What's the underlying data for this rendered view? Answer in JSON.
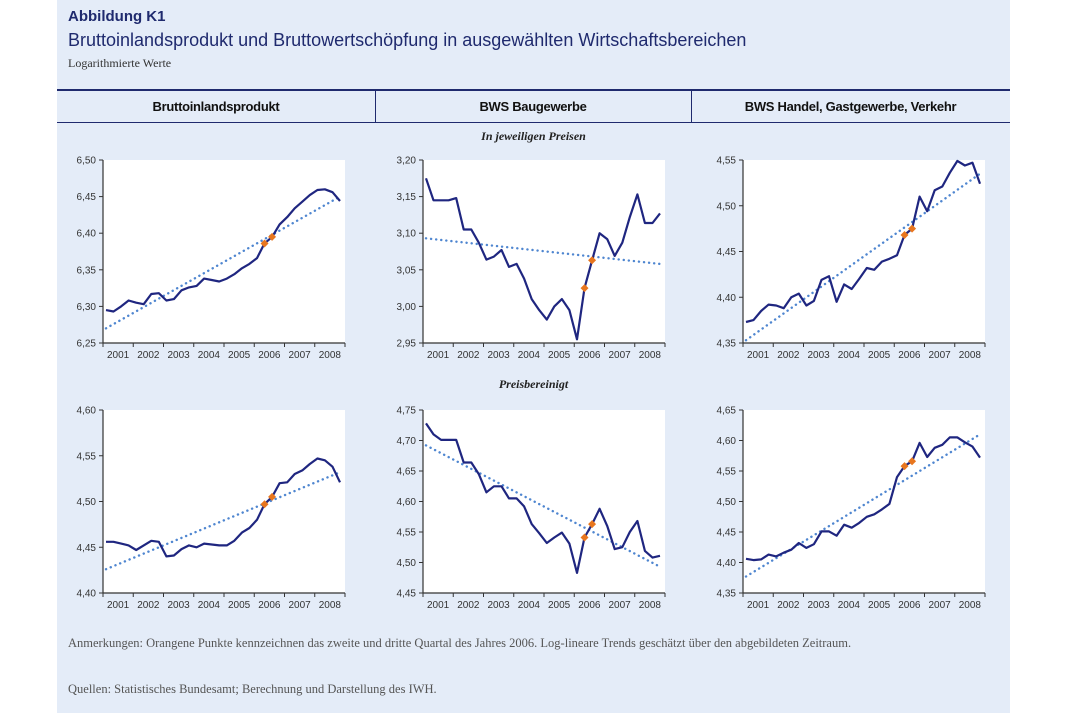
{
  "header": {
    "label": "Abbildung K1",
    "title": "Bruttoinlandsprodukt und Bruttowertschöpfung in ausgewählten Wirtschaftsbereichen",
    "subtitle": "Logarithmierte Werte"
  },
  "columns": [
    "Bruttoinlandsprodukt",
    "BWS Baugewerbe",
    "BWS Handel, Gastgewerbe, Verkehr"
  ],
  "sections": [
    "In jeweiligen Preisen",
    "Preisbereinigt"
  ],
  "notes": {
    "remarks": "Anmerkungen: Orangene Punkte kennzeichnen das zweite und dritte Quartal des Jahres 2006. Log-lineare Trends geschätzt über den abgebildeten Zeitraum.",
    "sources": "Quellen: Statistisches Bundesamt; Berechnung und Darstellung des IWH."
  },
  "colors": {
    "series": "#1f2680",
    "trend": "#4f86d0",
    "highlight": "#e8761e",
    "background": "#e4ecf8"
  },
  "chart_data": [
    {
      "type": "line",
      "section": "In jeweiligen Preisen",
      "column": "Bruttoinlandsprodukt",
      "x_ticks": [
        "2001",
        "2002",
        "2003",
        "2004",
        "2005",
        "2006",
        "2007",
        "2008"
      ],
      "frequency": "quarterly",
      "ylim": [
        6.25,
        6.5
      ],
      "y_ticks": [
        "6,25",
        "6,30",
        "6,35",
        "6,40",
        "6,45",
        "6,50"
      ],
      "values": [
        6.295,
        6.293,
        6.3,
        6.308,
        6.305,
        6.303,
        6.317,
        6.318,
        6.308,
        6.31,
        6.322,
        6.326,
        6.328,
        6.338,
        6.336,
        6.334,
        6.338,
        6.344,
        6.352,
        6.358,
        6.366,
        6.386,
        6.395,
        6.412,
        6.422,
        6.434,
        6.443,
        6.452,
        6.459,
        6.46,
        6.456,
        6.444
      ],
      "trend": [
        6.27,
        6.45
      ],
      "highlight_quarters": [
        "2006Q2",
        "2006Q3"
      ]
    },
    {
      "type": "line",
      "section": "In jeweiligen Preisen",
      "column": "BWS Baugewerbe",
      "x_ticks": [
        "2001",
        "2002",
        "2003",
        "2004",
        "2005",
        "2006",
        "2007",
        "2008"
      ],
      "frequency": "quarterly",
      "ylim": [
        2.95,
        3.2
      ],
      "y_ticks": [
        "2,95",
        "3,00",
        "3,05",
        "3,10",
        "3,15",
        "3,20"
      ],
      "values": [
        3.175,
        3.145,
        3.145,
        3.145,
        3.148,
        3.105,
        3.105,
        3.087,
        3.064,
        3.068,
        3.077,
        3.054,
        3.058,
        3.038,
        3.01,
        2.995,
        2.982,
        3.0,
        3.01,
        2.995,
        2.955,
        3.025,
        3.063,
        3.1,
        3.092,
        3.069,
        3.087,
        3.122,
        3.153,
        3.114,
        3.114,
        3.127
      ],
      "trend": [
        3.093,
        3.058
      ],
      "highlight_quarters": [
        "2006Q2",
        "2006Q3"
      ]
    },
    {
      "type": "line",
      "section": "In jeweiligen Preisen",
      "column": "BWS Handel, Gastgewerbe, Verkehr",
      "x_ticks": [
        "2001",
        "2002",
        "2003",
        "2004",
        "2005",
        "2006",
        "2007",
        "2008"
      ],
      "frequency": "quarterly",
      "ylim": [
        4.35,
        4.55
      ],
      "y_ticks": [
        "4,35",
        "4,40",
        "4,45",
        "4,50",
        "4,55"
      ],
      "values": [
        4.373,
        4.375,
        4.385,
        4.392,
        4.391,
        4.388,
        4.4,
        4.404,
        4.391,
        4.396,
        4.419,
        4.423,
        4.395,
        4.414,
        4.409,
        4.42,
        4.432,
        4.43,
        4.439,
        4.442,
        4.446,
        4.468,
        4.475,
        4.51,
        4.494,
        4.517,
        4.521,
        4.536,
        4.549,
        4.544,
        4.547,
        4.524
      ],
      "trend": [
        4.353,
        4.535
      ],
      "highlight_quarters": [
        "2006Q2",
        "2006Q3"
      ]
    },
    {
      "type": "line",
      "section": "Preisbereinigt",
      "column": "Bruttoinlandsprodukt",
      "x_ticks": [
        "2001",
        "2002",
        "2003",
        "2004",
        "2005",
        "2006",
        "2007",
        "2008"
      ],
      "frequency": "quarterly",
      "ylim": [
        4.4,
        4.6
      ],
      "y_ticks": [
        "4,40",
        "4,45",
        "4,50",
        "4,55",
        "4,60"
      ],
      "values": [
        4.456,
        4.456,
        4.454,
        4.452,
        4.447,
        4.452,
        4.457,
        4.456,
        4.44,
        4.441,
        4.448,
        4.452,
        4.45,
        4.454,
        4.453,
        4.452,
        4.452,
        4.457,
        4.466,
        4.471,
        4.48,
        4.497,
        4.505,
        4.52,
        4.521,
        4.53,
        4.534,
        4.541,
        4.547,
        4.545,
        4.538,
        4.521
      ],
      "trend": [
        4.426,
        4.532
      ],
      "highlight_quarters": [
        "2006Q2",
        "2006Q3"
      ]
    },
    {
      "type": "line",
      "section": "Preisbereinigt",
      "column": "BWS Baugewerbe",
      "x_ticks": [
        "2001",
        "2002",
        "2003",
        "2004",
        "2005",
        "2006",
        "2007",
        "2008"
      ],
      "frequency": "quarterly",
      "ylim": [
        4.45,
        4.75
      ],
      "y_ticks": [
        "4,45",
        "4,50",
        "4,55",
        "4,60",
        "4,65",
        "4,70",
        "4,75"
      ],
      "values": [
        4.728,
        4.71,
        4.701,
        4.701,
        4.701,
        4.664,
        4.664,
        4.645,
        4.615,
        4.625,
        4.625,
        4.605,
        4.605,
        4.592,
        4.563,
        4.548,
        4.532,
        4.541,
        4.549,
        4.531,
        4.483,
        4.541,
        4.563,
        4.588,
        4.56,
        4.522,
        4.525,
        4.55,
        4.568,
        4.519,
        4.508,
        4.511
      ],
      "trend": [
        4.692,
        4.493
      ],
      "highlight_quarters": [
        "2006Q2",
        "2006Q3"
      ]
    },
    {
      "type": "line",
      "section": "Preisbereinigt",
      "column": "BWS Handel, Gastgewerbe, Verkehr",
      "x_ticks": [
        "2001",
        "2002",
        "2003",
        "2004",
        "2005",
        "2006",
        "2007",
        "2008"
      ],
      "frequency": "quarterly",
      "ylim": [
        4.35,
        4.65
      ],
      "y_ticks": [
        "4,35",
        "4,40",
        "4,45",
        "4,50",
        "4,55",
        "4,60",
        "4,65"
      ],
      "values": [
        4.406,
        4.404,
        4.405,
        4.413,
        4.41,
        4.416,
        4.421,
        4.432,
        4.424,
        4.43,
        4.451,
        4.451,
        4.444,
        4.462,
        4.457,
        4.465,
        4.475,
        4.479,
        4.487,
        4.496,
        4.54,
        4.558,
        4.566,
        4.596,
        4.573,
        4.588,
        4.593,
        4.605,
        4.605,
        4.597,
        4.59,
        4.572
      ],
      "trend": [
        4.377,
        4.61
      ],
      "highlight_quarters": [
        "2006Q2",
        "2006Q3"
      ]
    }
  ]
}
